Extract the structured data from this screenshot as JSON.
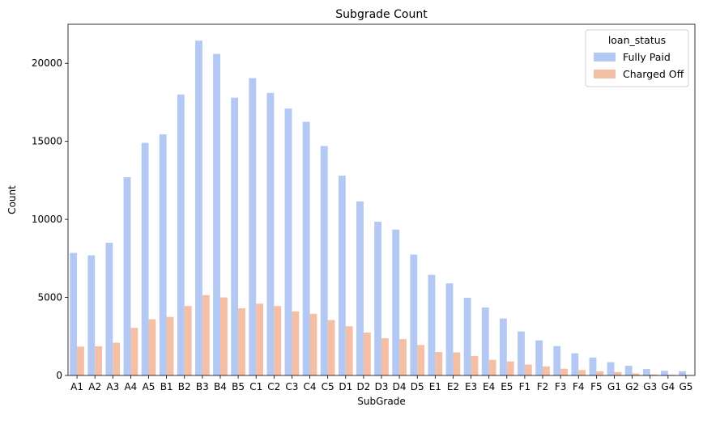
{
  "chart_data": {
    "type": "bar",
    "title": "Subgrade Count",
    "xlabel": "SubGrade",
    "ylabel": "Count",
    "categories": [
      "A1",
      "A2",
      "A3",
      "A4",
      "A5",
      "B1",
      "B2",
      "B3",
      "B4",
      "B5",
      "C1",
      "C2",
      "C3",
      "C4",
      "C5",
      "D1",
      "D2",
      "D3",
      "D4",
      "D5",
      "E1",
      "E2",
      "E3",
      "E4",
      "E5",
      "F1",
      "F2",
      "F3",
      "F4",
      "F5",
      "G1",
      "G2",
      "G3",
      "G4",
      "G5"
    ],
    "yticks": [
      0,
      5000,
      10000,
      15000,
      20000
    ],
    "ylim": [
      0,
      22500
    ],
    "legend": {
      "title": "loan_status",
      "position": "upper-right"
    },
    "series": [
      {
        "name": "Fully Paid",
        "color": "#b3c9f4",
        "values": [
          7850,
          7700,
          8500,
          12700,
          14900,
          15450,
          18000,
          21450,
          20600,
          17800,
          19050,
          18100,
          17100,
          16250,
          14700,
          12800,
          11150,
          9850,
          9350,
          7750,
          6450,
          5900,
          4980,
          4350,
          3650,
          2820,
          2250,
          1880,
          1420,
          1150,
          850,
          620,
          410,
          300,
          270
        ]
      },
      {
        "name": "Charged Off",
        "color": "#f4bfa4",
        "values": [
          1850,
          1870,
          2100,
          3050,
          3600,
          3750,
          4450,
          5150,
          5000,
          4300,
          4600,
          4450,
          4100,
          3950,
          3550,
          3150,
          2750,
          2380,
          2330,
          1950,
          1500,
          1480,
          1250,
          1000,
          900,
          700,
          580,
          430,
          350,
          270,
          220,
          130,
          60,
          40,
          20
        ]
      }
    ]
  }
}
